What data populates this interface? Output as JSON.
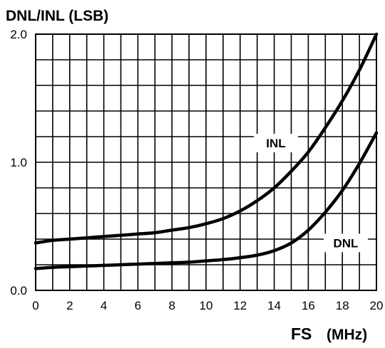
{
  "chart_data": {
    "type": "line",
    "ylabel": "DNL/INL (LSB)",
    "xlabel_main": "FS",
    "xlabel_unit": "(MHz)",
    "xlim": [
      0,
      20
    ],
    "ylim": [
      0,
      2.0
    ],
    "grid": true,
    "x_ticks": [
      "0",
      "2",
      "4",
      "6",
      "8",
      "10",
      "12",
      "14",
      "16",
      "18",
      "20"
    ],
    "y_ticks": [
      "0.0",
      "1.0",
      "2.0"
    ],
    "series": [
      {
        "name": "INL",
        "color": "#000000",
        "x": [
          0,
          1,
          2,
          3,
          4,
          5,
          6,
          7,
          8,
          9,
          10,
          11,
          12,
          13,
          14,
          15,
          16,
          17,
          18,
          19,
          20
        ],
        "y": [
          0.37,
          0.39,
          0.4,
          0.41,
          0.42,
          0.43,
          0.44,
          0.45,
          0.47,
          0.49,
          0.52,
          0.56,
          0.62,
          0.7,
          0.8,
          0.93,
          1.08,
          1.27,
          1.48,
          1.72,
          2.0
        ]
      },
      {
        "name": "DNL",
        "color": "#000000",
        "x": [
          0,
          1,
          2,
          3,
          4,
          5,
          6,
          7,
          8,
          9,
          10,
          11,
          12,
          13,
          14,
          15,
          16,
          17,
          18,
          19,
          20
        ],
        "y": [
          0.17,
          0.18,
          0.185,
          0.19,
          0.195,
          0.2,
          0.205,
          0.21,
          0.215,
          0.22,
          0.23,
          0.24,
          0.255,
          0.275,
          0.31,
          0.37,
          0.47,
          0.61,
          0.78,
          0.99,
          1.23
        ]
      }
    ],
    "labels": [
      {
        "text": "INL",
        "x": 14.1,
        "y": 1.15
      },
      {
        "text": "DNL",
        "x": 18.2,
        "y": 0.37
      }
    ]
  }
}
